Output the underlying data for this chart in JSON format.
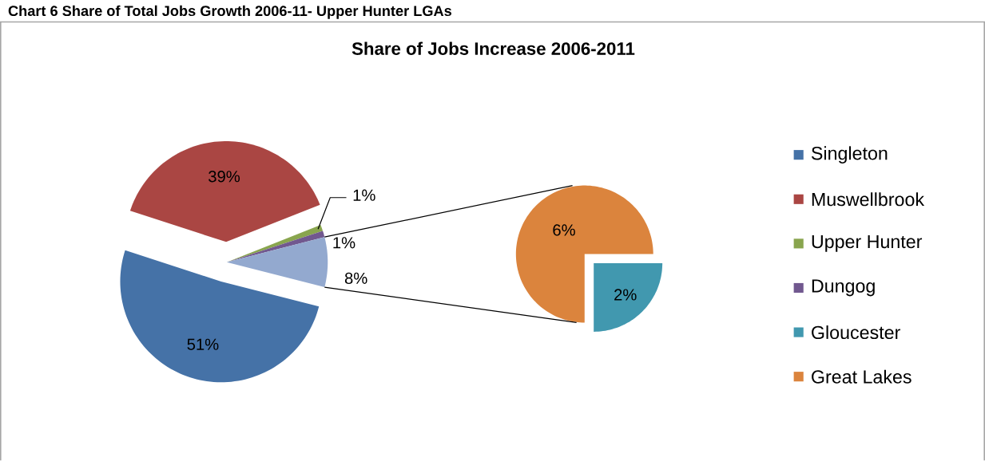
{
  "chart_data": [
    {
      "type": "pie",
      "title": "Chart 6 Share of Total Jobs Growth 2006-11- Upper Hunter LGAs",
      "subtitle": "Share of Jobs Increase 2006-2011",
      "categories": [
        "Singleton",
        "Muswellbrook",
        "Upper Hunter",
        "Dungog",
        null
      ],
      "values": [
        51,
        39,
        1,
        1,
        8
      ],
      "colors": [
        "#4572a7",
        "#aa4643",
        "#89a54e",
        "#71588f",
        "#93a9cf"
      ],
      "value_labels": [
        "51%",
        "39%",
        "1%",
        "1%",
        "8%"
      ],
      "legend": "right"
    },
    {
      "type": "pie",
      "categories": [
        "Gloucester",
        "Great Lakes"
      ],
      "values": [
        2,
        6
      ],
      "colors": [
        "#4198af",
        "#db843d"
      ],
      "value_labels": [
        "2%",
        "6%"
      ],
      "legend": "right"
    }
  ]
}
